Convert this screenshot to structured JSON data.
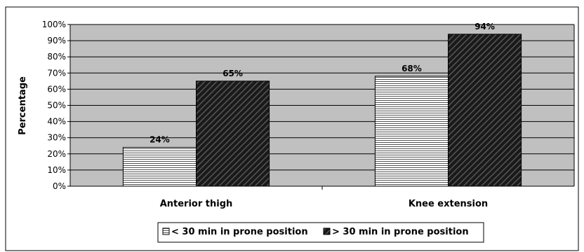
{
  "chart_data": {
    "type": "bar",
    "categories": [
      "Anterior thigh",
      "Knee extension"
    ],
    "series": [
      {
        "name": "< 30 min in prone position",
        "values": [
          24,
          68
        ],
        "pattern": "horizontal-stripes",
        "color": "#ffffff"
      },
      {
        "name": "> 30 min in prone position",
        "values": [
          65,
          94
        ],
        "pattern": "dark-diagonal",
        "color": "#1a1a1a"
      }
    ],
    "data_labels": [
      [
        "24%",
        "68%"
      ],
      [
        "65%",
        "94%"
      ]
    ],
    "ylabel": "Percentage",
    "ylim": [
      0,
      100
    ],
    "yticks": [
      "0%",
      "10%",
      "20%",
      "30%",
      "40%",
      "50%",
      "60%",
      "70%",
      "80%",
      "90%",
      "100%"
    ],
    "grid": true,
    "legend_position": "bottom",
    "plot_background": "#c0c0c0"
  }
}
